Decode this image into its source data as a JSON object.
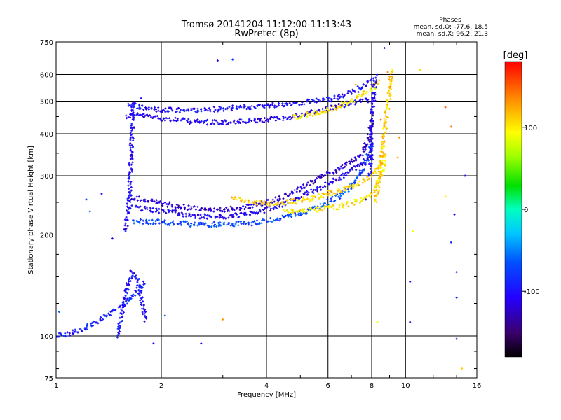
{
  "chart_data": {
    "type": "scatter",
    "title": "Tromsø 20141204 11:12:00-11:13:43",
    "subtitle": "RwPretec (8p)",
    "xlabel": "Frequency [MHz]",
    "ylabel": "Stationary phase Virtual Height [km]",
    "x_scale": "log",
    "y_scale": "log",
    "xlim": [
      1,
      16
    ],
    "ylim": [
      75,
      750
    ],
    "x_ticks": [
      1,
      2,
      4,
      6,
      8,
      10,
      16
    ],
    "y_ticks": [
      75,
      100,
      200,
      300,
      400,
      500,
      600,
      750
    ],
    "grid": true,
    "phases": {
      "title": "Phases",
      "line_o": "mean, sd,O: -77.6, 18.5",
      "line_x": "mean, sd,X:  96.2, 21.3"
    },
    "colorbar": {
      "label": "[deg]",
      "range": [
        -180,
        180
      ],
      "ticks": [
        100,
        0,
        -100
      ],
      "colormap": "rainbow"
    },
    "traces": [
      {
        "x": [
          1.58,
          1.7,
          2.0,
          2.3,
          2.6,
          3.0,
          3.5,
          4.0,
          4.5,
          5.0,
          5.5,
          6.0,
          6.5,
          7.0,
          7.5,
          8.0
        ],
        "y": [
          450,
          455,
          445,
          438,
          433,
          432,
          435,
          440,
          445,
          455,
          465,
          475,
          485,
          495,
          500,
          505
        ],
        "phase": -110
      },
      {
        "x": [
          1.6,
          2.0,
          2.5,
          3.0,
          3.5,
          4.0,
          4.5,
          5.0,
          5.5,
          6.0,
          6.5,
          7.0,
          7.5,
          8.0
        ],
        "y": [
          485,
          470,
          470,
          475,
          480,
          485,
          490,
          495,
          500,
          505,
          515,
          530,
          550,
          580
        ],
        "phase": -100
      },
      {
        "x": [
          4.8,
          5.5,
          6.0,
          6.5,
          7.0,
          7.5,
          8.0,
          8.4
        ],
        "y": [
          448,
          460,
          470,
          485,
          500,
          520,
          545,
          570
        ],
        "phase": 100
      },
      {
        "x": [
          1.65,
          2.0,
          2.5,
          3.0,
          3.5,
          4.0,
          4.5,
          5.0,
          5.5,
          6.0,
          6.5,
          7.0,
          7.5,
          7.8,
          8.0
        ],
        "y": [
          220,
          218,
          215,
          215,
          216,
          220,
          225,
          232,
          240,
          250,
          262,
          280,
          310,
          340,
          380
        ],
        "phase": -70
      },
      {
        "x": [
          1.65,
          2.0,
          2.5,
          3.0,
          3.5,
          4.0,
          4.5,
          5.0,
          5.5,
          6.0,
          6.5,
          7.0,
          7.5,
          7.8,
          8.0
        ],
        "y": [
          260,
          248,
          240,
          238,
          242,
          250,
          262,
          275,
          290,
          305,
          315,
          330,
          350,
          380,
          430
        ],
        "phase": -120
      },
      {
        "x": [
          1.65,
          2.0,
          2.5,
          3.0,
          3.5,
          4.0,
          4.5,
          5.0,
          5.5,
          6.0,
          6.5,
          7.0,
          7.5,
          8.0
        ],
        "y": [
          242,
          236,
          228,
          226,
          230,
          238,
          248,
          260,
          272,
          285,
          297,
          310,
          325,
          345
        ],
        "phase": -110
      },
      {
        "x": [
          4.5,
          5.0,
          5.5,
          6.0,
          6.5,
          7.0,
          7.5,
          8.0,
          8.4,
          8.7
        ],
        "y": [
          236,
          236,
          238,
          240,
          243,
          248,
          255,
          265,
          290,
          330
        ],
        "phase": 100
      },
      {
        "x": [
          3.2,
          3.6,
          4.0,
          4.5,
          5.0,
          5.5,
          6.0,
          6.5,
          7.0,
          7.5,
          8.0,
          8.4,
          8.7
        ],
        "y": [
          256,
          250,
          248,
          250,
          253,
          258,
          265,
          270,
          278,
          288,
          300,
          320,
          350
        ],
        "phase": 110
      },
      {
        "x": [
          8.2,
          8.3,
          8.4,
          8.5,
          8.6,
          8.7,
          8.8,
          9.0,
          9.1
        ],
        "y": [
          250,
          270,
          300,
          330,
          360,
          400,
          450,
          520,
          620
        ],
        "phase": 110
      },
      {
        "x": [
          7.9,
          8.0,
          8.0,
          8.0,
          8.1,
          8.15,
          8.2
        ],
        "y": [
          300,
          350,
          400,
          450,
          500,
          550,
          600
        ],
        "phase": -110
      },
      {
        "x": [
          1.58,
          1.6,
          1.62,
          1.63,
          1.64,
          1.65,
          1.66,
          1.67
        ],
        "y": [
          205,
          230,
          260,
          300,
          350,
          400,
          450,
          500
        ],
        "phase": -105
      },
      {
        "x": [
          1.0,
          1.1,
          1.2,
          1.3,
          1.4,
          1.5,
          1.6,
          1.7,
          1.8
        ],
        "y": [
          100,
          102,
          105,
          110,
          115,
          120,
          128,
          135,
          145
        ],
        "phase": -90
      },
      {
        "x": [
          1.5,
          1.55,
          1.6,
          1.65,
          1.7,
          1.75,
          1.8
        ],
        "y": [
          100,
          120,
          140,
          155,
          150,
          130,
          110
        ],
        "phase": -100
      }
    ],
    "scatter_points": [
      {
        "x": 2.9,
        "y": 660,
        "phase": -100
      },
      {
        "x": 3.2,
        "y": 665,
        "phase": -80
      },
      {
        "x": 8.7,
        "y": 720,
        "phase": -110
      },
      {
        "x": 11.0,
        "y": 620,
        "phase": 110
      },
      {
        "x": 13.0,
        "y": 480,
        "phase": 150
      },
      {
        "x": 13.5,
        "y": 420,
        "phase": 140
      },
      {
        "x": 14.8,
        "y": 300,
        "phase": -120
      },
      {
        "x": 13.0,
        "y": 260,
        "phase": 100
      },
      {
        "x": 13.8,
        "y": 230,
        "phase": -110
      },
      {
        "x": 10.5,
        "y": 205,
        "phase": 90
      },
      {
        "x": 13.5,
        "y": 190,
        "phase": -80
      },
      {
        "x": 14.0,
        "y": 155,
        "phase": -100
      },
      {
        "x": 10.3,
        "y": 145,
        "phase": -100
      },
      {
        "x": 14.0,
        "y": 130,
        "phase": -90
      },
      {
        "x": 10.3,
        "y": 110,
        "phase": -120
      },
      {
        "x": 14.0,
        "y": 98,
        "phase": -110
      },
      {
        "x": 14.5,
        "y": 80,
        "phase": 110
      },
      {
        "x": 1.25,
        "y": 235,
        "phase": -60
      },
      {
        "x": 1.22,
        "y": 255,
        "phase": -70
      },
      {
        "x": 1.35,
        "y": 265,
        "phase": -110
      },
      {
        "x": 2.6,
        "y": 95,
        "phase": -110
      },
      {
        "x": 3.0,
        "y": 112,
        "phase": 130
      },
      {
        "x": 2.05,
        "y": 115,
        "phase": -70
      },
      {
        "x": 1.9,
        "y": 95,
        "phase": -100
      },
      {
        "x": 1.02,
        "y": 118,
        "phase": -60
      },
      {
        "x": 1.45,
        "y": 195,
        "phase": -110
      },
      {
        "x": 1.75,
        "y": 510,
        "phase": -100
      },
      {
        "x": 8.0,
        "y": 560,
        "phase": -130
      },
      {
        "x": 9.6,
        "y": 390,
        "phase": 130
      },
      {
        "x": 9.5,
        "y": 340,
        "phase": 120
      },
      {
        "x": 8.9,
        "y": 610,
        "phase": 140
      },
      {
        "x": 7.2,
        "y": 560,
        "phase": 120
      },
      {
        "x": 8.5,
        "y": 440,
        "phase": 160
      },
      {
        "x": 8.3,
        "y": 110,
        "phase": 90
      },
      {
        "x": 7.7,
        "y": 255,
        "phase": -110
      }
    ]
  }
}
